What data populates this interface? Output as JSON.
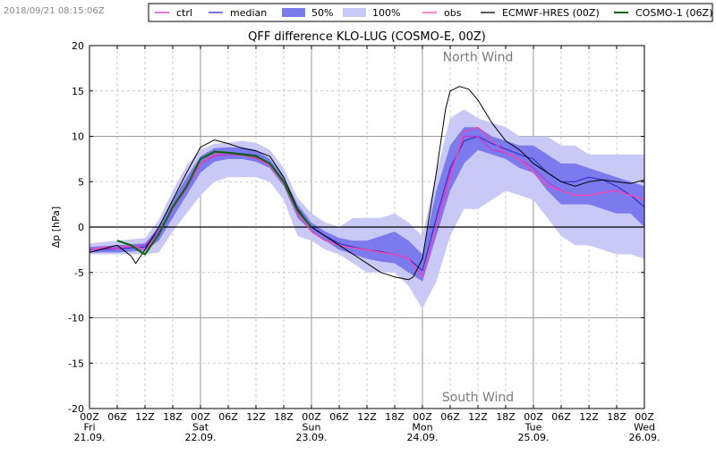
{
  "timestamp": "2018/09/21 08:15:06Z",
  "chart_data": {
    "type": "line",
    "title": "QFF difference KLO-LUG (COSMO-E, 00Z)",
    "ylabel": "Δp [hPa]",
    "xlabel": "",
    "xlim": [
      0,
      120
    ],
    "ylim": [
      -20,
      20
    ],
    "yticks": [
      -20,
      -15,
      -10,
      -5,
      0,
      5,
      10,
      15,
      20
    ],
    "xticks": [
      {
        "x": 0,
        "lines": [
          "00Z",
          "Fri",
          "21.09."
        ]
      },
      {
        "x": 6,
        "lines": [
          "06Z"
        ]
      },
      {
        "x": 12,
        "lines": [
          "12Z"
        ]
      },
      {
        "x": 18,
        "lines": [
          "18Z"
        ]
      },
      {
        "x": 24,
        "lines": [
          "00Z",
          "Sat",
          "22.09."
        ]
      },
      {
        "x": 30,
        "lines": [
          "06Z"
        ]
      },
      {
        "x": 36,
        "lines": [
          "12Z"
        ]
      },
      {
        "x": 42,
        "lines": [
          "18Z"
        ]
      },
      {
        "x": 48,
        "lines": [
          "00Z",
          "Sun",
          "23.09."
        ]
      },
      {
        "x": 54,
        "lines": [
          "06Z"
        ]
      },
      {
        "x": 60,
        "lines": [
          "12Z"
        ]
      },
      {
        "x": 66,
        "lines": [
          "18Z"
        ]
      },
      {
        "x": 72,
        "lines": [
          "00Z",
          "Mon",
          "24.09."
        ]
      },
      {
        "x": 78,
        "lines": [
          "06Z"
        ]
      },
      {
        "x": 84,
        "lines": [
          "12Z"
        ]
      },
      {
        "x": 90,
        "lines": [
          "18Z"
        ]
      },
      {
        "x": 96,
        "lines": [
          "00Z",
          "Tue",
          "25.09."
        ]
      },
      {
        "x": 102,
        "lines": [
          "06Z"
        ]
      },
      {
        "x": 108,
        "lines": [
          "12Z"
        ]
      },
      {
        "x": 114,
        "lines": [
          "18Z"
        ]
      },
      {
        "x": 120,
        "lines": [
          "00Z",
          "Wed",
          "26.09."
        ]
      }
    ],
    "day_lines": [
      24,
      48,
      72,
      96
    ],
    "annotations": {
      "top": "North Wind",
      "bottom": "South Wind"
    },
    "legend": [
      {
        "key": "ctrl",
        "label": "ctrl",
        "kind": "line",
        "color": "#cc33cc"
      },
      {
        "key": "median",
        "label": "median",
        "kind": "line",
        "color": "#3333cc"
      },
      {
        "key": "p50",
        "label": "50%",
        "kind": "patch",
        "color": "#7b7bee"
      },
      {
        "key": "p100",
        "label": "100%",
        "kind": "patch",
        "color": "#c9c9f6"
      },
      {
        "key": "obs",
        "label": "obs",
        "kind": "line",
        "color": "#ff44aa"
      },
      {
        "key": "ecmwf",
        "label": "ECMWF-HRES (00Z)",
        "kind": "line",
        "color": "#000000"
      },
      {
        "key": "cosmo1",
        "label": "COSMO-1 (06Z)",
        "kind": "line",
        "color": "#006600"
      }
    ],
    "band_100": {
      "x": [
        0,
        6,
        12,
        15,
        18,
        21,
        24,
        27,
        30,
        33,
        36,
        39,
        42,
        45,
        48,
        51,
        54,
        57,
        60,
        63,
        66,
        69,
        72,
        75,
        78,
        81,
        84,
        87,
        90,
        93,
        96,
        99,
        102,
        105,
        108,
        111,
        114,
        117,
        120
      ],
      "upper": [
        -1.8,
        -1.5,
        -1.2,
        0.8,
        4.0,
        6.8,
        8.5,
        9.2,
        9.3,
        9.5,
        9.3,
        8.5,
        6.5,
        3.2,
        1.5,
        0.5,
        0.0,
        1.0,
        1.0,
        1.0,
        1.5,
        0.5,
        -1.0,
        6.0,
        12.0,
        13.0,
        12.0,
        11.5,
        11.0,
        10.0,
        10.0,
        10.0,
        9.0,
        9.0,
        8.0,
        8.0,
        8.0,
        8.0,
        8.0
      ],
      "lower": [
        -3.0,
        -3.0,
        -3.0,
        -2.8,
        -0.5,
        1.5,
        3.5,
        5.0,
        5.5,
        5.5,
        5.5,
        5.0,
        3.0,
        -1.0,
        -1.5,
        -2.5,
        -3.0,
        -4.0,
        -5.0,
        -5.0,
        -5.0,
        -6.5,
        -9.0,
        -6.0,
        -1.0,
        2.0,
        2.0,
        3.0,
        4.0,
        3.5,
        3.0,
        1.0,
        -1.0,
        -2.0,
        -2.0,
        -2.5,
        -3.0,
        -3.0,
        -3.5
      ]
    },
    "band_50": {
      "x": [
        0,
        6,
        12,
        15,
        18,
        21,
        24,
        27,
        30,
        33,
        36,
        39,
        42,
        45,
        48,
        51,
        54,
        57,
        60,
        63,
        66,
        69,
        72,
        75,
        78,
        81,
        84,
        87,
        90,
        93,
        96,
        99,
        102,
        105,
        108,
        111,
        114,
        117,
        120
      ],
      "upper": [
        -2.2,
        -2.0,
        -1.8,
        0.0,
        3.0,
        5.5,
        7.8,
        8.7,
        8.8,
        8.8,
        8.5,
        7.5,
        5.5,
        2.5,
        0.5,
        -0.5,
        -1.2,
        -1.5,
        -1.5,
        -1.0,
        -0.5,
        -1.5,
        -3.0,
        4.0,
        9.0,
        11.0,
        11.0,
        10.0,
        9.5,
        9.0,
        9.0,
        8.0,
        7.0,
        7.0,
        6.5,
        6.0,
        5.5,
        5.0,
        4.5
      ],
      "lower": [
        -2.8,
        -2.8,
        -2.6,
        -1.5,
        1.0,
        3.5,
        6.0,
        7.2,
        7.5,
        7.5,
        7.2,
        6.5,
        4.5,
        1.0,
        -0.5,
        -1.5,
        -2.5,
        -3.0,
        -3.5,
        -3.8,
        -4.0,
        -5.0,
        -6.0,
        -1.0,
        4.0,
        7.0,
        8.5,
        8.0,
        7.5,
        6.5,
        6.0,
        4.0,
        2.5,
        2.5,
        2.5,
        2.0,
        1.5,
        1.5,
        0.0
      ]
    },
    "series": [
      {
        "key": "median",
        "name": "median",
        "color": "#3333cc",
        "width": 1.2,
        "x": [
          0,
          6,
          12,
          15,
          18,
          21,
          24,
          27,
          30,
          33,
          36,
          39,
          42,
          45,
          48,
          51,
          54,
          57,
          60,
          63,
          66,
          69,
          72,
          75,
          78,
          81,
          84,
          87,
          90,
          93,
          96,
          99,
          102,
          105,
          108,
          111,
          114,
          117,
          120
        ],
        "y": [
          -2.5,
          -2.4,
          -2.2,
          -0.5,
          2.0,
          4.5,
          7.0,
          8.0,
          8.2,
          8.1,
          7.9,
          7.0,
          5.0,
          1.8,
          0.0,
          -1.0,
          -1.8,
          -2.2,
          -2.5,
          -2.7,
          -3.0,
          -3.5,
          -4.8,
          1.0,
          6.5,
          9.5,
          10.0,
          9.2,
          8.6,
          8.0,
          7.5,
          6.0,
          5.0,
          5.0,
          5.5,
          5.2,
          4.5,
          3.5,
          2.2
        ]
      },
      {
        "key": "ctrl",
        "name": "ctrl",
        "color": "#cc33cc",
        "width": 1.2,
        "x": [
          0,
          6,
          12,
          15,
          18,
          21,
          24,
          27,
          30,
          33,
          36,
          39,
          42,
          45,
          48,
          51,
          54,
          57,
          60,
          63,
          66,
          69,
          72,
          75,
          78,
          81,
          84,
          87,
          90,
          93,
          96,
          99,
          102,
          105,
          108,
          111,
          114,
          117,
          120
        ],
        "y": [
          -2.5,
          -2.3,
          -2.0,
          -0.5,
          2.0,
          4.3,
          7.0,
          7.8,
          8.0,
          7.9,
          7.6,
          6.8,
          4.8,
          1.5,
          -0.5,
          -1.5,
          -2.0,
          -2.3,
          -2.5,
          -2.8,
          -3.0,
          -3.5,
          -5.5,
          0.0,
          6.0,
          10.0,
          10.0,
          8.5,
          8.2,
          7.5,
          6.5,
          5.0,
          4.0,
          3.5,
          3.5,
          3.8,
          4.0,
          3.5,
          3.0
        ]
      },
      {
        "key": "obs",
        "name": "obs",
        "color": "#ff44aa",
        "width": 1.2,
        "x": [
          0,
          3,
          6,
          9,
          12,
          15,
          18,
          21,
          24,
          27,
          30,
          33,
          36,
          39,
          42,
          45,
          48,
          51,
          54,
          57,
          60,
          63,
          66,
          69,
          72,
          75,
          78,
          81,
          84,
          87,
          90,
          93,
          96,
          99,
          102,
          105,
          108,
          111,
          114,
          117,
          120
        ],
        "y": [
          -2.6,
          -2.2,
          -2.4,
          -2.0,
          -2.5,
          -0.8,
          2.0,
          4.5,
          7.0,
          8.0,
          8.2,
          7.9,
          7.7,
          6.8,
          4.8,
          1.5,
          -0.5,
          -1.5,
          -2.0,
          -2.3,
          -2.5,
          -2.8,
          -3.0,
          -3.5,
          -5.5,
          0.0,
          5.5,
          10.5,
          11.0,
          9.5,
          8.2,
          7.5,
          6.0,
          4.5,
          4.0,
          3.5,
          3.5,
          3.8,
          4.0,
          3.5,
          3.0
        ]
      },
      {
        "key": "ecmwf",
        "name": "ECMWF-HRES (00Z)",
        "color": "#000000",
        "width": 1.0,
        "x": [
          0,
          6,
          9,
          10,
          12,
          15,
          18,
          21,
          24,
          27,
          30,
          33,
          36,
          39,
          42,
          45,
          48,
          51,
          54,
          57,
          60,
          63,
          66,
          69,
          70,
          72,
          75,
          77,
          78,
          80,
          82,
          84,
          87,
          90,
          93,
          96,
          99,
          102,
          105,
          108,
          111,
          114,
          117,
          120
        ],
        "y": [
          -2.8,
          -2.0,
          -3.2,
          -4.0,
          -2.5,
          0.0,
          3.0,
          6.0,
          8.8,
          9.6,
          9.2,
          8.7,
          8.4,
          7.8,
          5.5,
          2.0,
          0.0,
          -1.0,
          -2.0,
          -3.0,
          -4.0,
          -5.0,
          -5.5,
          -5.8,
          -5.5,
          -3.5,
          6.0,
          13.0,
          15.0,
          15.5,
          15.2,
          14.0,
          11.5,
          9.5,
          8.5,
          7.0,
          6.0,
          5.0,
          4.5,
          5.0,
          5.2,
          5.0,
          4.8,
          5.2
        ]
      },
      {
        "key": "cosmo1",
        "name": "COSMO-1 (06Z)",
        "color": "#006600",
        "width": 2.0,
        "x": [
          6,
          9,
          11,
          12,
          15,
          18,
          21,
          24,
          27,
          30,
          33,
          36,
          39,
          42,
          45,
          48
        ],
        "y": [
          -1.5,
          -2.0,
          -2.7,
          -3.0,
          -0.8,
          2.2,
          4.5,
          7.5,
          8.3,
          8.2,
          8.0,
          7.8,
          7.0,
          5.0,
          1.8,
          0.0
        ]
      }
    ]
  }
}
